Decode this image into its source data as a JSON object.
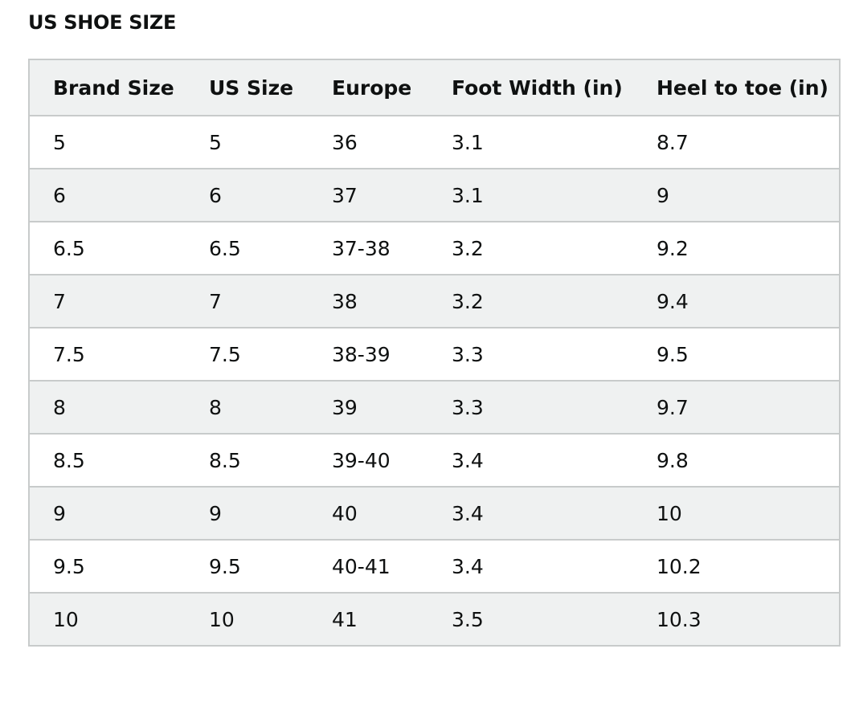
{
  "chart_title": "US SHOE SIZE",
  "table": {
    "headers": [
      "Brand Size",
      "US Size",
      "Europe",
      "Foot Width (in)",
      "Heel to toe (in)"
    ],
    "rows": [
      [
        "5",
        "5",
        "36",
        "3.1",
        "8.7"
      ],
      [
        "6",
        "6",
        "37",
        "3.1",
        "9"
      ],
      [
        "6.5",
        "6.5",
        "37-38",
        "3.2",
        "9.2"
      ],
      [
        "7",
        "7",
        "38",
        "3.2",
        "9.4"
      ],
      [
        "7.5",
        "7.5",
        "38-39",
        "3.3",
        "9.5"
      ],
      [
        "8",
        "8",
        "39",
        "3.3",
        "9.7"
      ],
      [
        "8.5",
        "8.5",
        "39-40",
        "3.4",
        "9.8"
      ],
      [
        "9",
        "9",
        "40",
        "3.4",
        "10"
      ],
      [
        "9.5",
        "9.5",
        "40-41",
        "3.4",
        "10.2"
      ],
      [
        "10",
        "10",
        "41",
        "3.5",
        "10.3"
      ]
    ]
  },
  "colors": {
    "text": "#0f1111",
    "border": "#c8cbcb",
    "stripe": "#eff1f1",
    "background": "#ffffff"
  }
}
